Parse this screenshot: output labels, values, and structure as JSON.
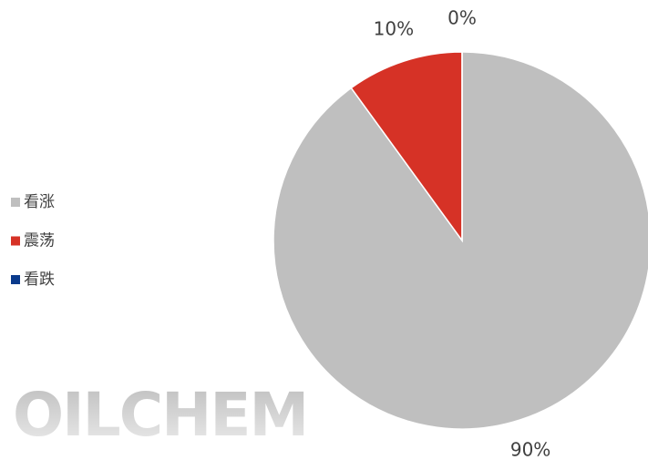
{
  "chart_data": {
    "type": "pie",
    "categories": [
      "看涨",
      "震荡",
      "看跌"
    ],
    "values": [
      90,
      10,
      0
    ],
    "value_labels": [
      "90%",
      "10%",
      "0%"
    ],
    "colors": [
      "#bfbfbf",
      "#d63226",
      "#0a3a8c"
    ],
    "legend": "left",
    "watermark": "OILCHEM"
  }
}
